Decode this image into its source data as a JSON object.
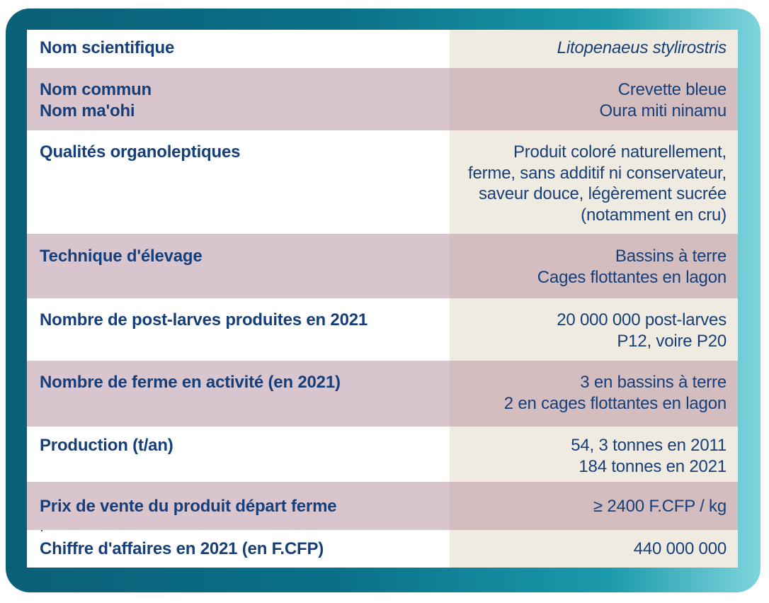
{
  "rows": [
    {
      "label": [
        "Nom scientifique"
      ],
      "value": [
        "Litopenaeus stylirostris"
      ]
    },
    {
      "label": [
        "Nom commun",
        "Nom ma'ohi"
      ],
      "value": [
        "Crevette bleue",
        "Oura miti ninamu"
      ]
    },
    {
      "label": [
        "Qualités organoleptiques"
      ],
      "value": [
        "Produit coloré naturellement,",
        "ferme, sans additif ni conservateur,",
        "saveur douce, légèrement sucrée",
        "(notamment en cru)"
      ]
    },
    {
      "label": [
        "Technique d'élevage"
      ],
      "value": [
        "Bassins à terre",
        "Cages flottantes en lagon"
      ]
    },
    {
      "label": [
        "Nombre de post-larves produites en 2021"
      ],
      "value": [
        "20 000 000 post-larves",
        "P12, voire P20"
      ]
    },
    {
      "label": [
        "Nombre de ferme en activité (en 2021)"
      ],
      "value": [
        "3 en bassins à terre",
        "2 en cages flottantes en lagon"
      ]
    },
    {
      "label": [
        "Production (t/an)"
      ],
      "value": [
        "54, 3 tonnes en 2011",
        "184 tonnes en 2021"
      ]
    },
    {
      "label": [
        "Prix de vente du produit départ ferme"
      ],
      "value": [
        "≥ 2400 F.CFP / kg"
      ]
    },
    {
      "label": [
        "Chiffre d'affaires en 2021 (en F.CFP)"
      ],
      "value": [
        "440 000 000"
      ]
    }
  ],
  "colors": {
    "text": "#163f7a",
    "frame_start": "#0b5f78",
    "frame_end": "#7fd4dc",
    "row_dark_label": "#d9c5cd",
    "row_dark_value": "#d3bdbf",
    "row_light_value": "#f0ebe0"
  }
}
